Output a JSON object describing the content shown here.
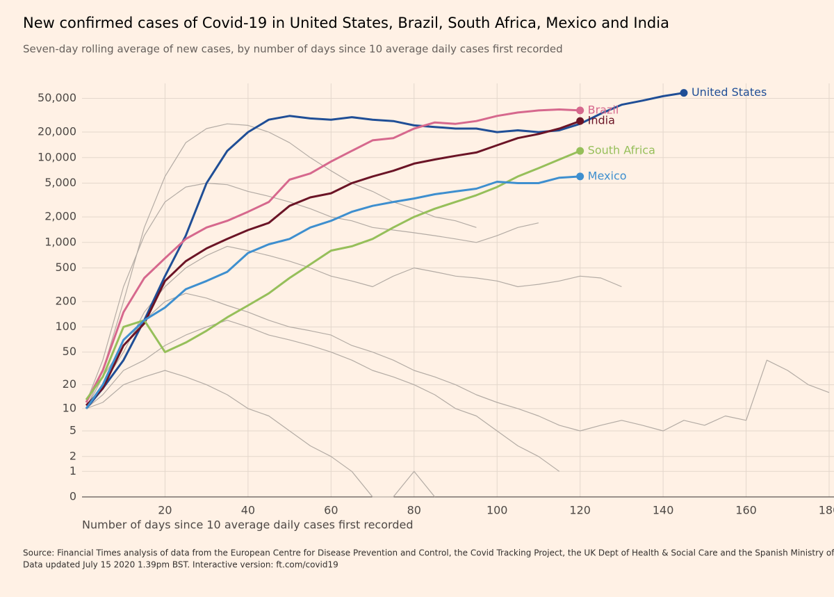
{
  "chart_data": {
    "type": "line",
    "title": "New confirmed cases of Covid-19 in United States, Brazil, South Africa, Mexico and India",
    "subtitle": "Seven-day rolling average of new cases, by number of days since 10 average daily cases first recorded",
    "x_label": "Number of days since 10 average daily cases first recorded",
    "source": "Source: Financial Times analysis of data from the European Centre for Disease Prevention and Control, the Covid Tracking Project, the UK Dept of Health & Social Care and the Spanish Ministry of Health",
    "updated": "Data updated July 15 2020 1.39pm BST. Interactive version: ft.com/covid19",
    "yscale": "log1p",
    "grid": true,
    "xlim": [
      0,
      180
    ],
    "xticks": [
      20,
      40,
      60,
      80,
      100,
      120,
      140,
      160,
      180
    ],
    "ylim": [
      0,
      75000
    ],
    "yticks": [
      0,
      1,
      2,
      5,
      10,
      20,
      50,
      100,
      200,
      500,
      {
        "value": 1000,
        "label": "1,000"
      },
      {
        "value": 2000,
        "label": "2,000"
      },
      {
        "value": 5000,
        "label": "5,000"
      },
      {
        "value": 10000,
        "label": "10,000"
      },
      {
        "value": 20000,
        "label": "20,000"
      },
      {
        "value": 50000,
        "label": "50,000"
      }
    ],
    "x": [
      1,
      5,
      10,
      15,
      20,
      25,
      30,
      35,
      40,
      45,
      50,
      55,
      60,
      65,
      70,
      75,
      80,
      85,
      90,
      95,
      100,
      105,
      110,
      115,
      120,
      125,
      130,
      135,
      140,
      145,
      150,
      155,
      160,
      165,
      170,
      175,
      180
    ],
    "series": [
      {
        "color": "#b3aba4",
        "values": [
          10,
          30,
          200,
          1500,
          6000,
          15000,
          22000,
          25000,
          24000,
          20000,
          15000,
          10000,
          7000,
          5000,
          4000,
          3000,
          2500,
          2000,
          1800,
          1500,
          null,
          null,
          null,
          null,
          null,
          null,
          null,
          null,
          null,
          null,
          null,
          null,
          null,
          null,
          null,
          null,
          null
        ]
      },
      {
        "color": "#b3aba4",
        "values": [
          12,
          40,
          300,
          1200,
          3000,
          4500,
          5000,
          4800,
          4000,
          3500,
          3000,
          2500,
          2000,
          1800,
          1500,
          1400,
          1300,
          1200,
          1100,
          1000,
          1200,
          1500,
          1700,
          null,
          null,
          null,
          null,
          null,
          null,
          null,
          null,
          null,
          null,
          null,
          null,
          null,
          null
        ]
      },
      {
        "color": "#b3aba4",
        "values": [
          10,
          20,
          50,
          150,
          300,
          500,
          700,
          900,
          800,
          700,
          600,
          500,
          400,
          350,
          300,
          400,
          500,
          450,
          400,
          380,
          350,
          300,
          320,
          350,
          400,
          380,
          300,
          null,
          null,
          null,
          null,
          null,
          null,
          null,
          null,
          null,
          null
        ]
      },
      {
        "color": "#b3aba4",
        "values": [
          10,
          15,
          30,
          40,
          60,
          80,
          100,
          120,
          100,
          80,
          70,
          60,
          50,
          40,
          30,
          25,
          20,
          15,
          10,
          8,
          5,
          3,
          2,
          1,
          null,
          null,
          null,
          null,
          null,
          null,
          null,
          null,
          null,
          null,
          null,
          null,
          null
        ]
      },
      {
        "color": "#b3aba4",
        "values": [
          10,
          12,
          20,
          25,
          30,
          25,
          20,
          15,
          10,
          8,
          5,
          3,
          2,
          1,
          0,
          0,
          1,
          0,
          null,
          null,
          null,
          null,
          null,
          null,
          null,
          null,
          null,
          null,
          null,
          null,
          null,
          null,
          null,
          null,
          null,
          null,
          null
        ]
      },
      {
        "color": "#b3aba4",
        "values": [
          10,
          25,
          60,
          120,
          200,
          250,
          220,
          180,
          150,
          120,
          100,
          90,
          80,
          60,
          50,
          40,
          30,
          25,
          20,
          15,
          12,
          10,
          8,
          6,
          5,
          6,
          7,
          6,
          5,
          7,
          6,
          8,
          7,
          40,
          30,
          20,
          16
        ]
      },
      {
        "name": "United States",
        "color": "#1f4e96",
        "values": [
          10,
          18,
          40,
          120,
          400,
          1200,
          5000,
          12000,
          20000,
          28000,
          31000,
          29000,
          28000,
          30000,
          28000,
          27000,
          24000,
          23000,
          22000,
          22000,
          20000,
          21000,
          20000,
          21000,
          25000,
          33000,
          42000,
          47000,
          53000,
          58000,
          null,
          null,
          null,
          null,
          null,
          null,
          null
        ]
      },
      {
        "name": "Brazil",
        "color": "#d6688d",
        "values": [
          12,
          30,
          150,
          380,
          650,
          1100,
          1500,
          1800,
          2300,
          3000,
          5500,
          6500,
          9000,
          12000,
          16000,
          17000,
          22000,
          26000,
          25000,
          27000,
          31000,
          34000,
          36000,
          37000,
          36000,
          null,
          null,
          null,
          null,
          null,
          null,
          null,
          null,
          null,
          null,
          null,
          null
        ]
      },
      {
        "name": "India",
        "color": "#6b1426",
        "values": [
          11,
          18,
          60,
          110,
          350,
          600,
          850,
          1100,
          1400,
          1700,
          2700,
          3400,
          3800,
          5000,
          6000,
          7000,
          8500,
          9500,
          10500,
          11500,
          14000,
          17000,
          19000,
          22000,
          27000,
          null,
          null,
          null,
          null,
          null,
          null,
          null,
          null,
          null,
          null,
          null,
          null
        ]
      },
      {
        "name": "South Africa",
        "color": "#96bf5a",
        "values": [
          13,
          25,
          100,
          120,
          50,
          65,
          90,
          130,
          180,
          250,
          380,
          550,
          800,
          900,
          1100,
          1500,
          2000,
          2500,
          3000,
          3600,
          4500,
          6000,
          7500,
          9500,
          12000,
          null,
          null,
          null,
          null,
          null,
          null,
          null,
          null,
          null,
          null,
          null,
          null
        ]
      },
      {
        "name": "Mexico",
        "color": "#3e8fcf",
        "values": [
          10,
          20,
          70,
          120,
          170,
          280,
          350,
          450,
          750,
          950,
          1100,
          1500,
          1800,
          2300,
          2700,
          3000,
          3300,
          3700,
          4000,
          4300,
          5200,
          5000,
          5000,
          5800,
          6000,
          null,
          null,
          null,
          null,
          null,
          null,
          null,
          null,
          null,
          null,
          null,
          null
        ]
      }
    ]
  }
}
